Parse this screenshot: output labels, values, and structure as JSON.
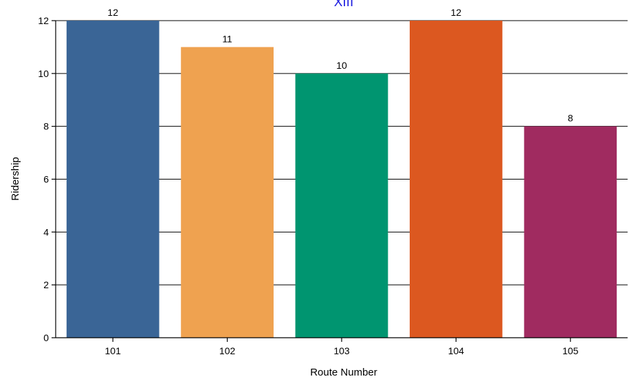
{
  "chart_data": {
    "type": "bar",
    "title": "XIII",
    "xlabel": "Route Number",
    "ylabel": "Ridership",
    "categories": [
      "101",
      "102",
      "103",
      "104",
      "105"
    ],
    "values": [
      12,
      11,
      10,
      12,
      8
    ],
    "colors": [
      "#3a6596",
      "#efa250",
      "#009570",
      "#dc5820",
      "#a02b60"
    ],
    "ylim": [
      0,
      12
    ],
    "yticks": [
      0,
      2,
      4,
      6,
      8,
      10,
      12
    ],
    "grid": "horizontal",
    "legend": "none"
  }
}
